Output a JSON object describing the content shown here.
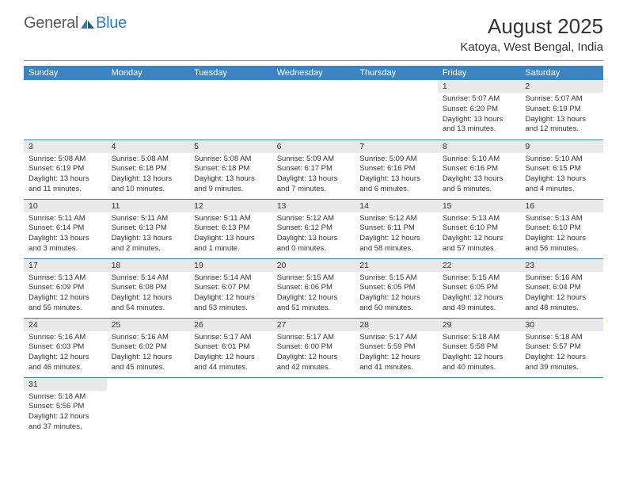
{
  "logo": {
    "text_general": "General",
    "text_blue": "Blue"
  },
  "title": "August 2025",
  "location": "Katoya, West Bengal, India",
  "colors": {
    "header_bg": "#3b84c4",
    "header_text": "#ffffff",
    "daynum_bg": "#e9e9e9",
    "row_border": "#3b84c4",
    "body_text": "#333333",
    "logo_blue": "#2f7fbf",
    "logo_grey": "#5a5a5a"
  },
  "weekdays": [
    "Sunday",
    "Monday",
    "Tuesday",
    "Wednesday",
    "Thursday",
    "Friday",
    "Saturday"
  ],
  "weeks": [
    [
      null,
      null,
      null,
      null,
      null,
      {
        "n": "1",
        "sr": "5:07 AM",
        "ss": "6:20 PM",
        "dl": "13 hours and 13 minutes."
      },
      {
        "n": "2",
        "sr": "5:07 AM",
        "ss": "6:19 PM",
        "dl": "13 hours and 12 minutes."
      }
    ],
    [
      {
        "n": "3",
        "sr": "5:08 AM",
        "ss": "6:19 PM",
        "dl": "13 hours and 11 minutes."
      },
      {
        "n": "4",
        "sr": "5:08 AM",
        "ss": "6:18 PM",
        "dl": "13 hours and 10 minutes."
      },
      {
        "n": "5",
        "sr": "5:08 AM",
        "ss": "6:18 PM",
        "dl": "13 hours and 9 minutes."
      },
      {
        "n": "6",
        "sr": "5:09 AM",
        "ss": "6:17 PM",
        "dl": "13 hours and 7 minutes."
      },
      {
        "n": "7",
        "sr": "5:09 AM",
        "ss": "6:16 PM",
        "dl": "13 hours and 6 minutes."
      },
      {
        "n": "8",
        "sr": "5:10 AM",
        "ss": "6:16 PM",
        "dl": "13 hours and 5 minutes."
      },
      {
        "n": "9",
        "sr": "5:10 AM",
        "ss": "6:15 PM",
        "dl": "13 hours and 4 minutes."
      }
    ],
    [
      {
        "n": "10",
        "sr": "5:11 AM",
        "ss": "6:14 PM",
        "dl": "13 hours and 3 minutes."
      },
      {
        "n": "11",
        "sr": "5:11 AM",
        "ss": "6:13 PM",
        "dl": "13 hours and 2 minutes."
      },
      {
        "n": "12",
        "sr": "5:11 AM",
        "ss": "6:13 PM",
        "dl": "13 hours and 1 minute."
      },
      {
        "n": "13",
        "sr": "5:12 AM",
        "ss": "6:12 PM",
        "dl": "13 hours and 0 minutes."
      },
      {
        "n": "14",
        "sr": "5:12 AM",
        "ss": "6:11 PM",
        "dl": "12 hours and 58 minutes."
      },
      {
        "n": "15",
        "sr": "5:13 AM",
        "ss": "6:10 PM",
        "dl": "12 hours and 57 minutes."
      },
      {
        "n": "16",
        "sr": "5:13 AM",
        "ss": "6:10 PM",
        "dl": "12 hours and 56 minutes."
      }
    ],
    [
      {
        "n": "17",
        "sr": "5:13 AM",
        "ss": "6:09 PM",
        "dl": "12 hours and 55 minutes."
      },
      {
        "n": "18",
        "sr": "5:14 AM",
        "ss": "6:08 PM",
        "dl": "12 hours and 54 minutes."
      },
      {
        "n": "19",
        "sr": "5:14 AM",
        "ss": "6:07 PM",
        "dl": "12 hours and 53 minutes."
      },
      {
        "n": "20",
        "sr": "5:15 AM",
        "ss": "6:06 PM",
        "dl": "12 hours and 51 minutes."
      },
      {
        "n": "21",
        "sr": "5:15 AM",
        "ss": "6:05 PM",
        "dl": "12 hours and 50 minutes."
      },
      {
        "n": "22",
        "sr": "5:15 AM",
        "ss": "6:05 PM",
        "dl": "12 hours and 49 minutes."
      },
      {
        "n": "23",
        "sr": "5:16 AM",
        "ss": "6:04 PM",
        "dl": "12 hours and 48 minutes."
      }
    ],
    [
      {
        "n": "24",
        "sr": "5:16 AM",
        "ss": "6:03 PM",
        "dl": "12 hours and 46 minutes."
      },
      {
        "n": "25",
        "sr": "5:16 AM",
        "ss": "6:02 PM",
        "dl": "12 hours and 45 minutes."
      },
      {
        "n": "26",
        "sr": "5:17 AM",
        "ss": "6:01 PM",
        "dl": "12 hours and 44 minutes."
      },
      {
        "n": "27",
        "sr": "5:17 AM",
        "ss": "6:00 PM",
        "dl": "12 hours and 42 minutes."
      },
      {
        "n": "28",
        "sr": "5:17 AM",
        "ss": "5:59 PM",
        "dl": "12 hours and 41 minutes."
      },
      {
        "n": "29",
        "sr": "5:18 AM",
        "ss": "5:58 PM",
        "dl": "12 hours and 40 minutes."
      },
      {
        "n": "30",
        "sr": "5:18 AM",
        "ss": "5:57 PM",
        "dl": "12 hours and 39 minutes."
      }
    ],
    [
      {
        "n": "31",
        "sr": "5:18 AM",
        "ss": "5:56 PM",
        "dl": "12 hours and 37 minutes."
      },
      null,
      null,
      null,
      null,
      null,
      null
    ]
  ],
  "labels": {
    "sunrise": "Sunrise:",
    "sunset": "Sunset:",
    "daylight": "Daylight:"
  }
}
